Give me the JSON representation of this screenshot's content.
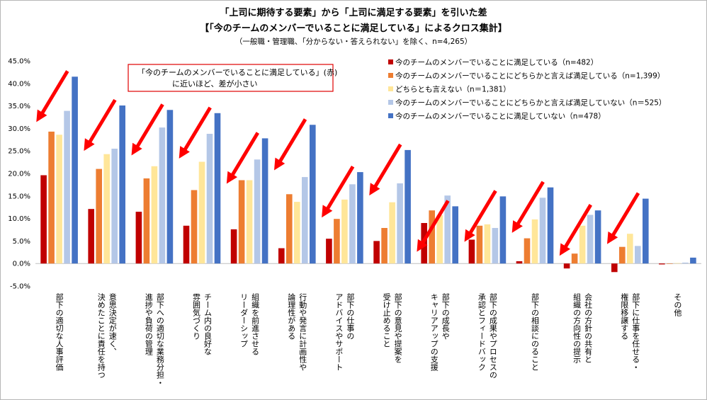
{
  "chart_data": {
    "type": "bar",
    "title_line1": "「上司に期待する要素」から「上司に満足する要素」を引いた差",
    "title_line2": "【「今のチームのメンバーでいることに満足している」によるクロス集計】",
    "subtitle": "（一般職・管理職、「分からない・答えられない」を除く、n=4,265）",
    "ylim": [
      -5,
      45
    ],
    "yticks": [
      "45.0%",
      "40.0%",
      "35.0%",
      "30.0%",
      "25.0%",
      "20.0%",
      "15.0%",
      "10.0%",
      "5.0%",
      "0.0%",
      "-5.0%"
    ],
    "ytick_values": [
      45,
      40,
      35,
      30,
      25,
      20,
      15,
      10,
      5,
      0,
      -5
    ],
    "categories": [
      [
        "部下の適切な人事評価"
      ],
      [
        "意思決定が速く、",
        "決めたことに責任を持つ"
      ],
      [
        "部下への適切な業務分担・",
        "進捗や負荷の管理"
      ],
      [
        "チーム内の良好な",
        "雰囲気づくり"
      ],
      [
        "組織を前進させる",
        "リーダーシップ"
      ],
      [
        "行動や発言に計画性や",
        "論理性がある"
      ],
      [
        "部下の仕事の",
        "アドバイスやサポート"
      ],
      [
        "部下の意見や提案を",
        "受け止めること"
      ],
      [
        "部下の成長や",
        "キャリアアップの支援"
      ],
      [
        "部下の成果やプロセスの",
        "承認とフィードバック"
      ],
      [
        "部下の相談にのること"
      ],
      [
        "会社の方針の共有と",
        "組織の方向性の提示"
      ],
      [
        "部下に仕事を任せる・",
        "権限移譲する"
      ],
      [
        "その他"
      ]
    ],
    "series": [
      {
        "name": "今のチームのメンバーでいることに満足している（n=482）",
        "color": "#c00000",
        "values": [
          19.6,
          12.1,
          11.5,
          8.4,
          7.6,
          3.4,
          5.5,
          5.0,
          9.0,
          5.3,
          0.5,
          -1.1,
          -1.9,
          -0.2
        ]
      },
      {
        "name": "今のチームのメンバーでいることにどちらかと言えば満足している（n=1,399）",
        "color": "#ed7d31",
        "values": [
          29.3,
          21.0,
          18.9,
          16.3,
          18.5,
          15.4,
          9.9,
          7.9,
          11.8,
          8.4,
          5.6,
          2.2,
          3.7,
          -0.1
        ]
      },
      {
        "name": "どちらとも言えない（n＝1,381）",
        "color": "#ffe699",
        "values": [
          28.6,
          24.3,
          21.6,
          22.6,
          18.5,
          13.7,
          14.2,
          13.6,
          10.7,
          8.7,
          9.8,
          8.4,
          6.6,
          0.1
        ]
      },
      {
        "name": "今のチームのメンバーでいることにどちらかと言えば満足していない（n＝525）",
        "color": "#b4c7e7",
        "values": [
          33.9,
          25.5,
          30.2,
          28.8,
          23.1,
          19.2,
          17.6,
          17.8,
          15.1,
          7.9,
          14.6,
          10.8,
          3.9,
          0.2
        ]
      },
      {
        "name": "今のチームのメンバーでいることに満足していない（n=478）",
        "color": "#4472c4",
        "values": [
          41.5,
          35.1,
          34.1,
          33.4,
          27.8,
          30.8,
          20.3,
          25.2,
          12.7,
          14.9,
          16.9,
          11.8,
          14.4,
          1.3
        ]
      }
    ],
    "annotation": [
      "「今のチームのメンバーでいることに満足している」(赤)",
      "に近いほど、差が小さい"
    ],
    "arrow_color": "#ff0000"
  }
}
